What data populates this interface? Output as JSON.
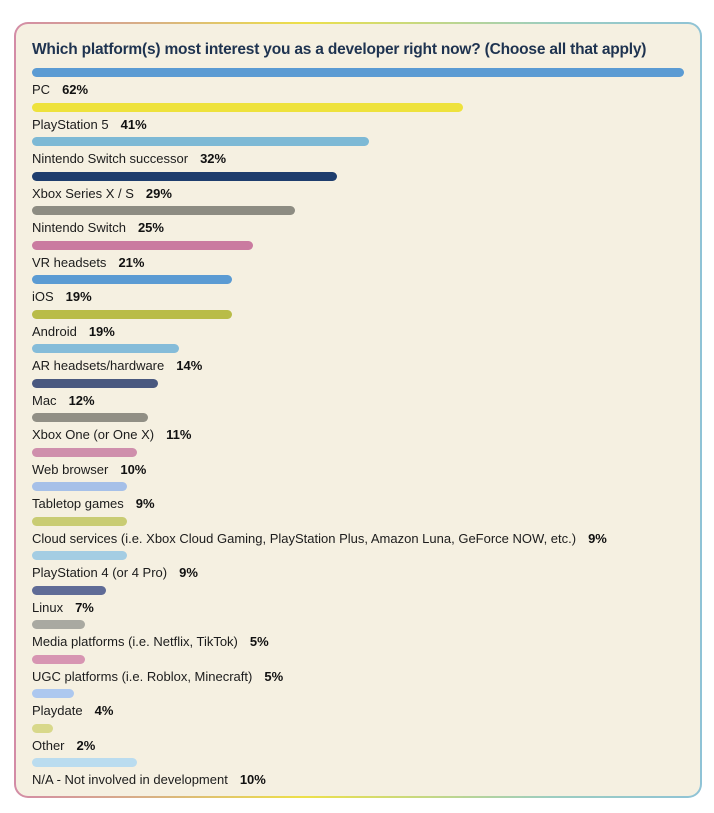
{
  "card": {
    "background": "#f5f0e1",
    "border_gradient": [
      "#d38ca6",
      "#d8b183",
      "#ede049",
      "#c9d97c",
      "#9ccdc0",
      "#8fc3d6"
    ],
    "title": "Which platform(s) most interest you as a developer right now? (Choose all that apply)",
    "title_color": "#1e3350"
  },
  "chart_data": {
    "type": "bar",
    "orientation": "horizontal",
    "title": "Which platform(s) most interest you as a developer right now? (Choose all that apply)",
    "unit": "%",
    "max_scale_value": 62,
    "legend": "none",
    "grid": false,
    "categories": [
      "PC",
      "PlayStation 5",
      "Nintendo Switch successor",
      "Xbox Series X / S",
      "Nintendo Switch",
      "VR headsets",
      "iOS",
      "Android",
      "AR headsets/hardware",
      "Mac",
      "Xbox One (or One X)",
      "Web browser",
      "Tabletop games",
      "Cloud services (i.e. Xbox Cloud Gaming, PlayStation Plus, Amazon Luna, GeForce NOW, etc.)",
      "PlayStation 4 (or 4 Pro)",
      "Linux",
      "Media platforms (i.e. Netflix, TikTok)",
      "UGC platforms (i.e. Roblox, Minecraft)",
      "Playdate",
      "Other",
      "N/A - Not involved in development"
    ],
    "values": [
      62,
      41,
      32,
      29,
      25,
      21,
      19,
      19,
      14,
      12,
      11,
      10,
      9,
      9,
      9,
      7,
      5,
      5,
      4,
      2,
      10
    ],
    "value_labels": [
      "62%",
      "41%",
      "32%",
      "29%",
      "25%",
      "21%",
      "19%",
      "19%",
      "14%",
      "12%",
      "11%",
      "10%",
      "9%",
      "9%",
      "9%",
      "7%",
      "5%",
      "5%",
      "4%",
      "2%",
      "10%"
    ],
    "colors": [
      "#5b9bd3",
      "#eee23c",
      "#7db9d5",
      "#1e3d6d",
      "#8d8c82",
      "#ca7ba0",
      "#5b9bd3",
      "#b9bc48",
      "#85bcd9",
      "#49587f",
      "#918f85",
      "#cf8fac",
      "#a6c0e8",
      "#c9cc73",
      "#a4cde3",
      "#5f6b96",
      "#a9a9a1",
      "#d795b2",
      "#adc8ef",
      "#d8d88a",
      "#badcef"
    ]
  }
}
